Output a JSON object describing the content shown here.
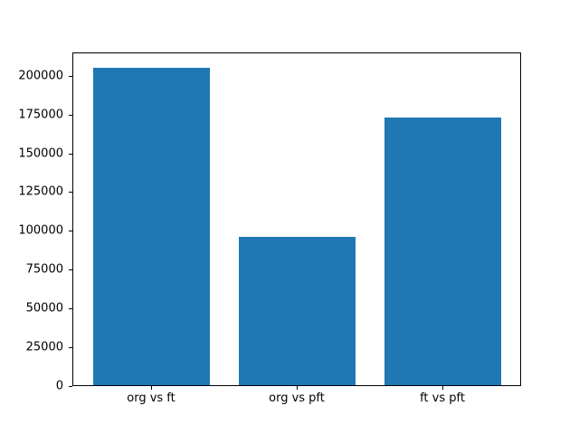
{
  "figure": {
    "background": "#ffffff",
    "axis_color": "#000000"
  },
  "chart_data": {
    "type": "bar",
    "title": "",
    "xlabel": "",
    "ylabel": "",
    "categories": [
      "org vs ft",
      "org vs pft",
      "ft vs pft"
    ],
    "values": [
      204500,
      95500,
      172500
    ],
    "ylim": [
      0,
      215000
    ],
    "yticks": [
      0,
      25000,
      50000,
      75000,
      100000,
      125000,
      150000,
      175000,
      200000
    ],
    "ytick_labels": [
      "0",
      "25000",
      "50000",
      "75000",
      "100000",
      "125000",
      "150000",
      "175000",
      "200000"
    ],
    "bar_color": "#1f77b4",
    "bar_width_fraction": 0.8,
    "grid": false,
    "legend_position": "none"
  }
}
